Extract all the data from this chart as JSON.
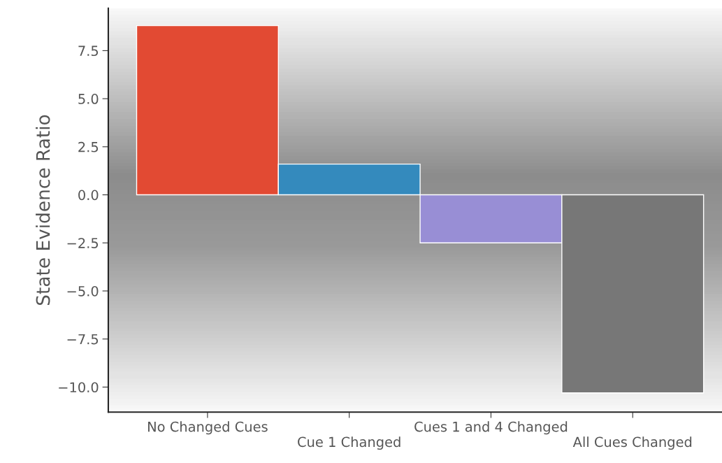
{
  "chart_data": {
    "type": "bar",
    "ylabel": "State Evidence Ratio",
    "categories": [
      "No Changed Cues",
      "Cue 1 Changed",
      "Cues 1 and 4 Changed",
      "All Cues Changed"
    ],
    "values": [
      8.8,
      1.6,
      -2.5,
      -10.3
    ],
    "colors": [
      "#e24a33",
      "#348abd",
      "#988ed5",
      "#777777"
    ],
    "ylim": [
      -11.3,
      9.7
    ],
    "yticks": [
      {
        "value": -10,
        "label": "−10.0"
      },
      {
        "value": -7.5,
        "label": "−7.5"
      },
      {
        "value": -5,
        "label": "−5.0"
      },
      {
        "value": -2.5,
        "label": "−2.5"
      },
      {
        "value": 0,
        "label": "0.0"
      },
      {
        "value": 2.5,
        "label": "2.5"
      },
      {
        "value": 5,
        "label": "5.0"
      },
      {
        "value": 7.5,
        "label": "7.5"
      }
    ],
    "grid": false,
    "legend": false
  }
}
